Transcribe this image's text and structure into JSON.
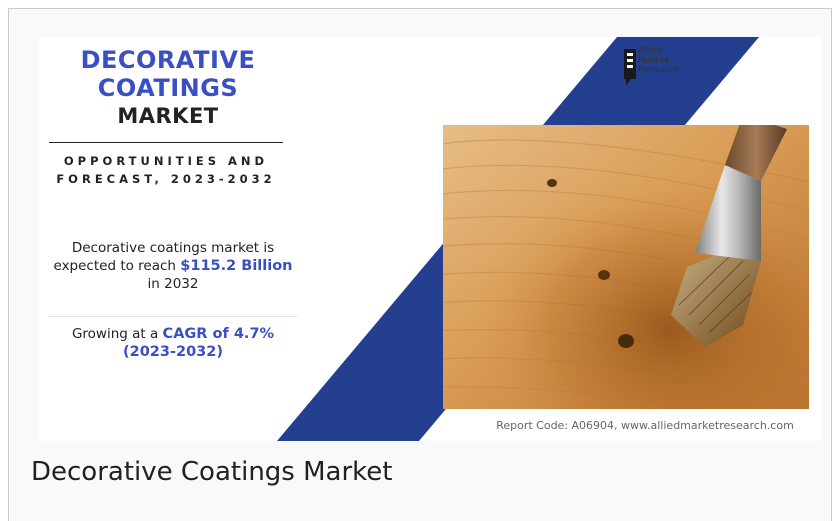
{
  "infographic": {
    "title_line1": "DECORATIVE",
    "title_line2": "COATINGS",
    "title_line3": "MARKET",
    "subtitle": "OPPORTUNITIES AND FORECAST, 2023-2032",
    "reach_prefix": "Decorative coatings market is expected to reach ",
    "reach_value": "$115.2 Billion",
    "reach_suffix": " in 2032",
    "cagr_prefix": "Growing at a ",
    "cagr_value": "CAGR of 4.7% (2023-2032)",
    "report_code": "Report Code: A06904, www.alliedmarketresearch.com",
    "logo": {
      "line1": "Allied",
      "line2": "Market",
      "line3": "Research"
    }
  },
  "caption": "Decorative Coatings Market",
  "colors": {
    "accent_blue": "#3b4fc4",
    "stripe_blue": "#243f8f",
    "frame_background": "#f8f9fa"
  }
}
